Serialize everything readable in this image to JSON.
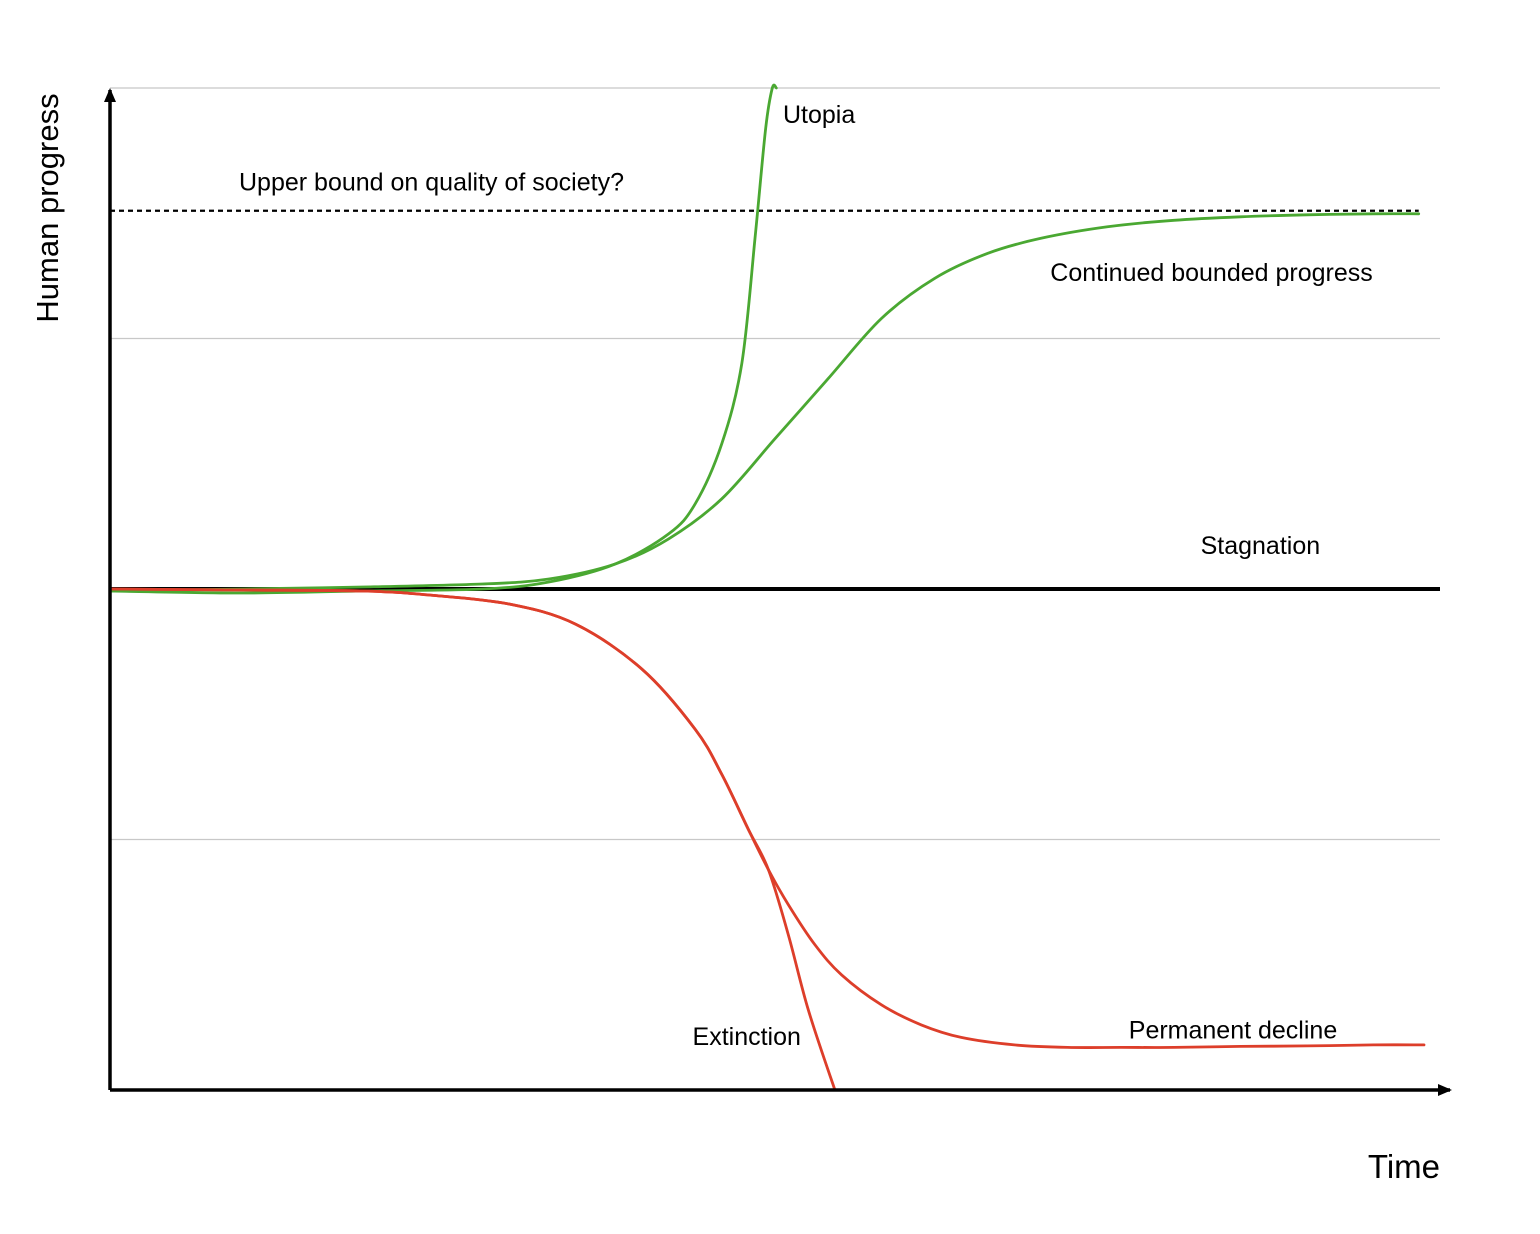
{
  "chart_data": {
    "type": "line",
    "title": "",
    "xlabel": "Time",
    "ylabel": "Human progress",
    "xlim": [
      0,
      100
    ],
    "ylim": [
      -1,
      1
    ],
    "grid": true,
    "y_gridlines": [
      -0.5,
      0.5,
      1.0
    ],
    "baseline": {
      "name": "Stagnation",
      "y": 0,
      "color": "#000000",
      "x": [
        0,
        100
      ]
    },
    "reference_line": {
      "label": "Upper bound on quality of society?",
      "y": 0.755,
      "style": "dashed",
      "color": "#000000",
      "x": [
        0,
        98.4
      ]
    },
    "series": [
      {
        "name": "Utopia",
        "color": "#4aa832",
        "x": [
          0,
          10,
          19,
          28,
          33,
          38,
          42,
          44,
          46,
          47.5,
          48.5,
          49.3,
          49.8,
          50.1
        ],
        "y": [
          -0.004,
          -0.008,
          -0.004,
          0.0,
          0.014,
          0.05,
          0.11,
          0.17,
          0.29,
          0.45,
          0.7,
          0.92,
          1.0,
          1.0
        ]
      },
      {
        "name": "Continued bounded progress",
        "color": "#4aa832",
        "x": [
          0,
          10,
          19,
          28,
          33,
          38,
          42,
          46,
          50,
          54,
          58,
          62,
          66,
          70,
          75,
          80,
          85,
          90,
          95,
          98.4
        ],
        "y": [
          -0.004,
          0.0,
          0.004,
          0.01,
          0.02,
          0.05,
          0.1,
          0.18,
          0.3,
          0.42,
          0.54,
          0.62,
          0.67,
          0.7,
          0.723,
          0.736,
          0.743,
          0.747,
          0.749,
          0.749
        ]
      },
      {
        "name": "Extinction",
        "color": "#dd3e2a",
        "x": [
          0,
          10,
          19,
          24,
          30,
          35,
          40,
          44,
          46,
          48,
          49.5,
          51,
          52.5,
          54.5
        ],
        "y": [
          0.0,
          -0.002,
          -0.004,
          -0.012,
          -0.03,
          -0.07,
          -0.16,
          -0.28,
          -0.37,
          -0.48,
          -0.56,
          -0.69,
          -0.84,
          -1.0
        ]
      },
      {
        "name": "Permanent decline",
        "color": "#dd3e2a",
        "x": [
          0,
          10,
          19,
          24,
          30,
          35,
          40,
          44,
          46,
          48,
          49.5,
          51,
          53,
          55,
          58,
          61,
          64,
          68,
          72,
          76,
          80,
          85,
          90,
          95,
          98.8
        ],
        "y": [
          0.0,
          -0.002,
          -0.004,
          -0.012,
          -0.03,
          -0.07,
          -0.16,
          -0.28,
          -0.37,
          -0.48,
          -0.56,
          -0.63,
          -0.71,
          -0.77,
          -0.83,
          -0.87,
          -0.895,
          -0.91,
          -0.915,
          -0.915,
          -0.915,
          -0.913,
          -0.912,
          -0.91,
          -0.91
        ]
      }
    ],
    "annotations": [
      {
        "id": "utopia",
        "text": "Utopia",
        "x": 50.6,
        "y": 0.93
      },
      {
        "id": "bound",
        "text": "Upper bound on quality of society?",
        "x": 9.7,
        "y": 0.795
      },
      {
        "id": "bounded",
        "text": "Continued bounded progress",
        "x": 70.7,
        "y": 0.615
      },
      {
        "id": "stagnation",
        "text": "Stagnation",
        "x": 82.0,
        "y": 0.07
      },
      {
        "id": "extinction",
        "text": "Extinction",
        "x": 43.8,
        "y": -0.91
      },
      {
        "id": "decline",
        "text": "Permanent decline",
        "x": 76.6,
        "y": -0.897
      }
    ]
  }
}
